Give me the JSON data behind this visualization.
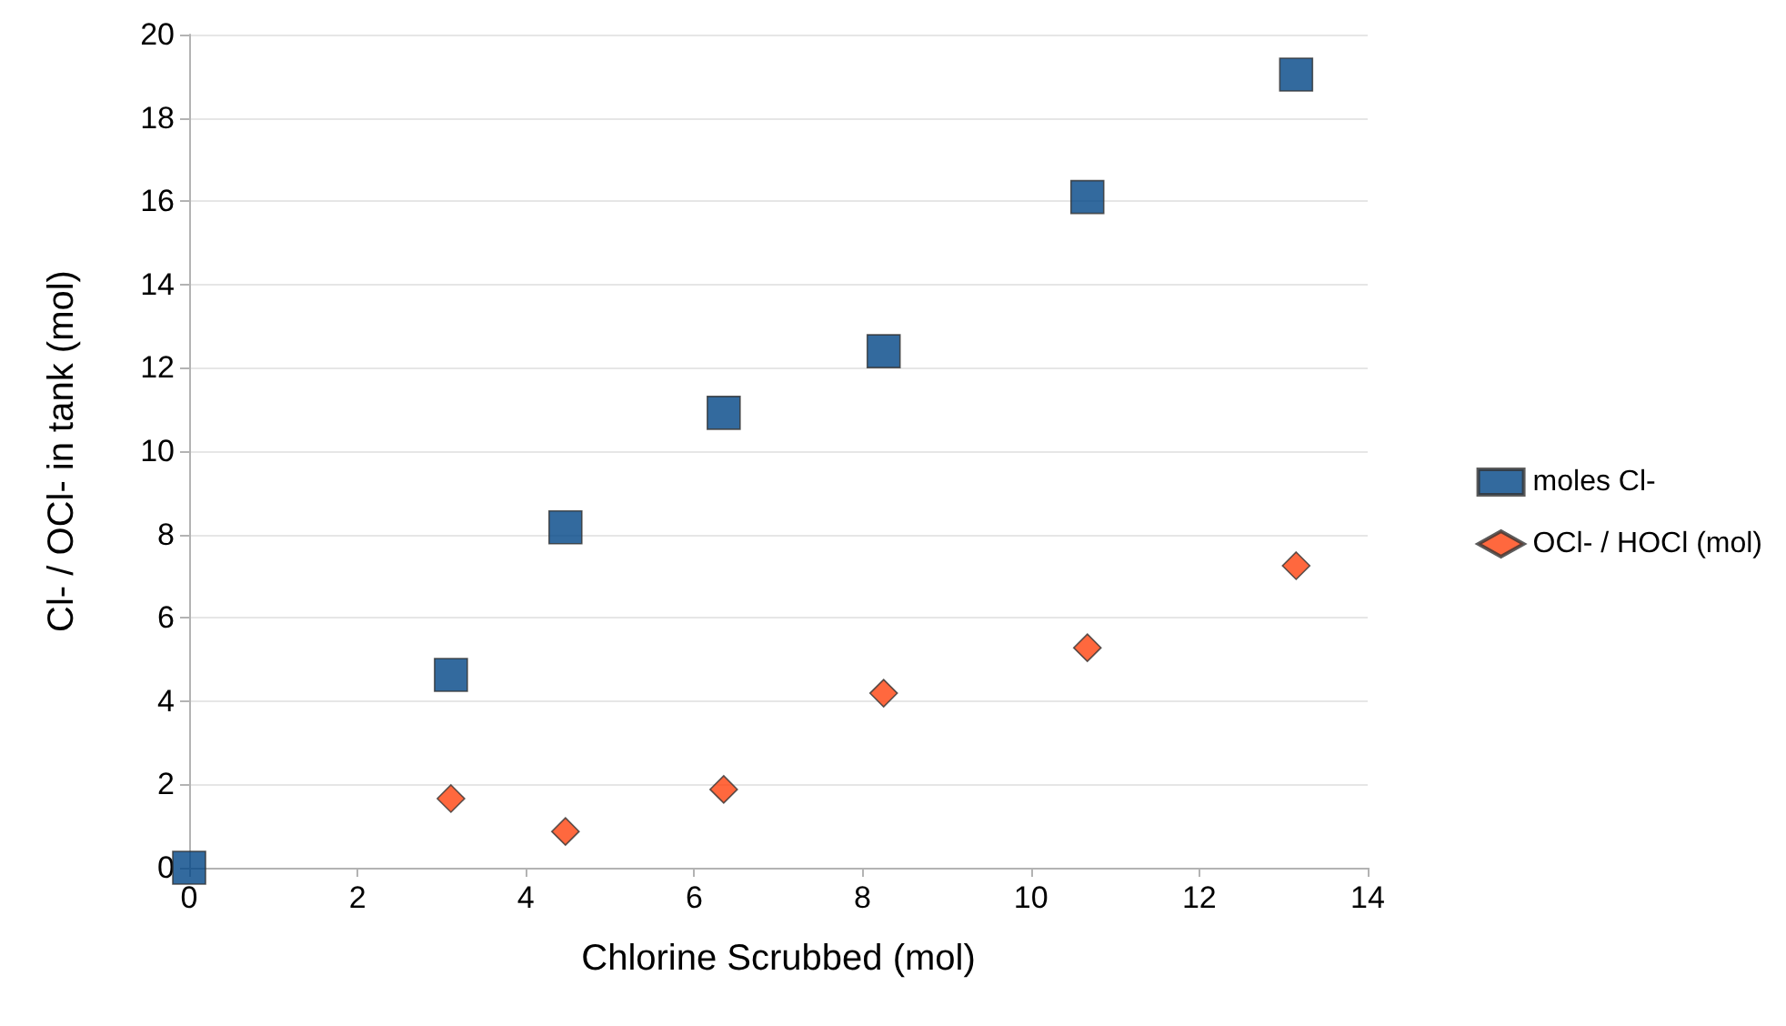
{
  "chart_data": {
    "type": "scatter",
    "xlabel": "Chlorine Scrubbed (mol)",
    "ylabel": "Cl- / OCl- in tank (mol)",
    "xlim": [
      0,
      14
    ],
    "xticks": [
      0,
      2,
      4,
      6,
      8,
      10,
      12,
      14
    ],
    "ylim": [
      0,
      20
    ],
    "yticks": [
      0,
      2,
      4,
      6,
      8,
      10,
      12,
      14,
      16,
      18,
      20
    ],
    "grid": "y",
    "legend": "right",
    "series": [
      {
        "name": "moles Cl-",
        "color": "#004586",
        "marker": "square",
        "x": [
          0,
          3.11,
          4.47,
          6.35,
          8.25,
          10.67,
          13.15
        ],
        "values": [
          0,
          4.63,
          8.17,
          10.92,
          12.4,
          16.1,
          19.04
        ]
      },
      {
        "name": "OCl- / HOCl (mol)",
        "color": "#ff420e",
        "marker": "diamond",
        "x": [
          3.11,
          4.47,
          6.35,
          8.25,
          10.67,
          13.15
        ],
        "values": [
          1.66,
          0.87,
          1.88,
          4.19,
          5.28,
          7.25
        ]
      }
    ]
  }
}
